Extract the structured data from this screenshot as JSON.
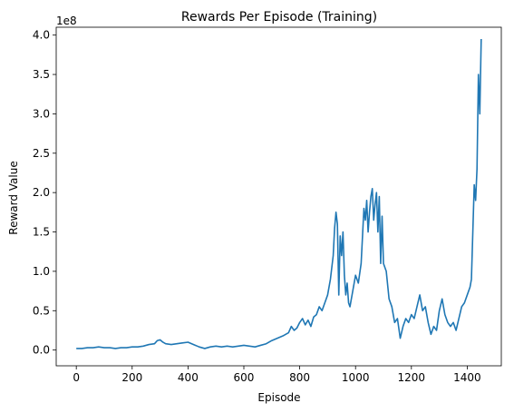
{
  "chart_data": {
    "type": "line",
    "title": "Rewards Per Episode (Training)",
    "xlabel": "Episode",
    "ylabel": "Reward Value",
    "y_offset_label": "1e8",
    "xlim": [
      -72,
      1522
    ],
    "ylim": [
      -0.2,
      4.1
    ],
    "y_units_multiplier": 100000000,
    "xticks": [
      0,
      200,
      400,
      600,
      800,
      1000,
      1200,
      1400
    ],
    "xtick_labels": [
      "0",
      "200",
      "400",
      "600",
      "800",
      "1000",
      "1200",
      "1400"
    ],
    "yticks": [
      0.0,
      0.5,
      1.0,
      1.5,
      2.0,
      2.5,
      3.0,
      3.5,
      4.0
    ],
    "ytick_labels": [
      "0.0",
      "0.5",
      "1.0",
      "1.5",
      "2.0",
      "2.5",
      "3.0",
      "3.5",
      "4.0"
    ],
    "grid": false,
    "legend": "none",
    "line_color": "#1f77b4",
    "series": [
      {
        "x": [
          0,
          20,
          40,
          60,
          80,
          100,
          120,
          140,
          160,
          180,
          200,
          220,
          240,
          260,
          280,
          290,
          300,
          310,
          320,
          340,
          360,
          380,
          400,
          420,
          440,
          460,
          480,
          500,
          520,
          540,
          560,
          580,
          600,
          620,
          640,
          660,
          680,
          700,
          720,
          740,
          760,
          770,
          780,
          790,
          800,
          810,
          820,
          830,
          840,
          850,
          860,
          870,
          880,
          890,
          900,
          910,
          920,
          925,
          930,
          935,
          940,
          945,
          950,
          955,
          960,
          965,
          970,
          975,
          980,
          990,
          1000,
          1010,
          1020,
          1025,
          1030,
          1035,
          1040,
          1045,
          1050,
          1055,
          1060,
          1065,
          1070,
          1075,
          1080,
          1085,
          1090,
          1095,
          1100,
          1110,
          1120,
          1130,
          1140,
          1150,
          1160,
          1170,
          1180,
          1190,
          1200,
          1210,
          1220,
          1230,
          1240,
          1250,
          1260,
          1270,
          1280,
          1290,
          1300,
          1310,
          1320,
          1330,
          1340,
          1350,
          1360,
          1370,
          1380,
          1390,
          1400,
          1410,
          1415,
          1420,
          1425,
          1430,
          1435,
          1440,
          1445,
          1450
        ],
        "y": [
          0.02,
          0.02,
          0.03,
          0.03,
          0.04,
          0.03,
          0.03,
          0.02,
          0.03,
          0.03,
          0.04,
          0.04,
          0.05,
          0.07,
          0.08,
          0.12,
          0.13,
          0.1,
          0.08,
          0.07,
          0.08,
          0.09,
          0.1,
          0.07,
          0.04,
          0.02,
          0.04,
          0.05,
          0.04,
          0.05,
          0.04,
          0.05,
          0.06,
          0.05,
          0.04,
          0.06,
          0.08,
          0.12,
          0.15,
          0.18,
          0.22,
          0.3,
          0.25,
          0.28,
          0.35,
          0.4,
          0.32,
          0.38,
          0.3,
          0.42,
          0.45,
          0.55,
          0.5,
          0.6,
          0.7,
          0.9,
          1.2,
          1.55,
          1.75,
          1.6,
          0.7,
          1.45,
          1.2,
          1.5,
          0.95,
          0.7,
          0.85,
          0.6,
          0.55,
          0.75,
          0.95,
          0.85,
          1.1,
          1.45,
          1.8,
          1.65,
          1.9,
          1.5,
          1.75,
          1.95,
          2.05,
          1.65,
          1.85,
          2.0,
          1.5,
          1.95,
          1.1,
          1.7,
          1.1,
          1.0,
          0.65,
          0.55,
          0.35,
          0.4,
          0.15,
          0.3,
          0.4,
          0.35,
          0.45,
          0.4,
          0.55,
          0.7,
          0.5,
          0.55,
          0.35,
          0.2,
          0.3,
          0.25,
          0.5,
          0.65,
          0.45,
          0.35,
          0.3,
          0.35,
          0.25,
          0.4,
          0.55,
          0.6,
          0.7,
          0.8,
          0.9,
          1.5,
          2.1,
          1.9,
          2.3,
          3.5,
          3.0,
          3.95
        ]
      }
    ]
  }
}
